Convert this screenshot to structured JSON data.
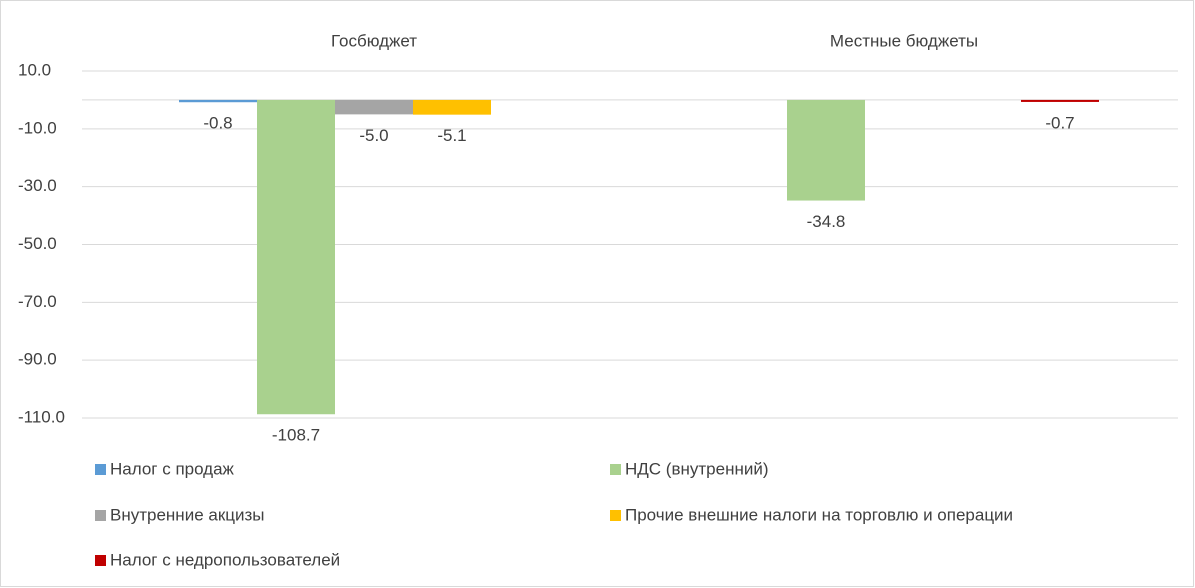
{
  "chart_data": {
    "type": "bar",
    "categories": [
      "Госбюджет",
      "Местные бюджеты"
    ],
    "series": [
      {
        "name": "Налог с продаж",
        "color": "#5b9bd5",
        "values": [
          -0.8,
          null
        ],
        "value_labels": [
          "-0.8",
          null
        ]
      },
      {
        "name": "НДС (внутренний)",
        "color": "#a9d18e",
        "values": [
          -108.7,
          -34.8
        ],
        "value_labels": [
          "-108.7",
          "-34.8"
        ]
      },
      {
        "name": "Внутренние акцизы",
        "color": "#a5a5a5",
        "values": [
          -5.0,
          null
        ],
        "value_labels": [
          "-5.0",
          null
        ]
      },
      {
        "name": "Прочие внешние налоги на торговлю и операции",
        "color": "#ffc000",
        "values": [
          -5.1,
          null
        ],
        "value_labels": [
          "-5.1",
          null
        ]
      },
      {
        "name": "Налог с недропользователей",
        "color": "#c00000",
        "values": [
          null,
          -0.7
        ],
        "value_labels": [
          null,
          "-0.7"
        ]
      }
    ],
    "ylim": [
      -110,
      10
    ],
    "yticks": [
      {
        "value": 10,
        "label": "10.0"
      },
      {
        "value": -10,
        "label": "-10.0"
      },
      {
        "value": -30,
        "label": "-30.0"
      },
      {
        "value": -50,
        "label": "-50.0"
      },
      {
        "value": -70,
        "label": "-70.0"
      },
      {
        "value": -90,
        "label": "-90.0"
      },
      {
        "value": -110,
        "label": "-110.0"
      }
    ],
    "grid": true
  }
}
